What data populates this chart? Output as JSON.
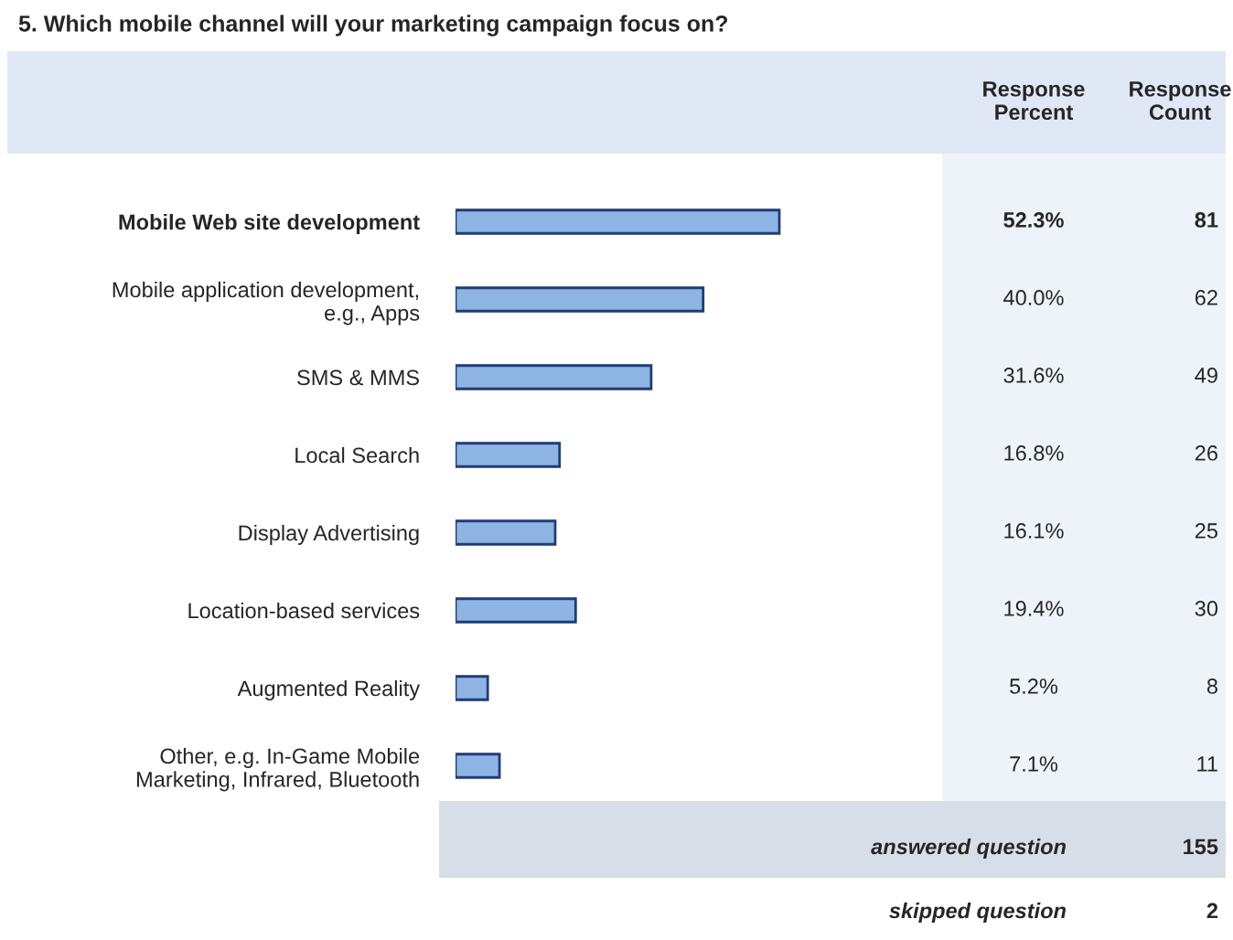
{
  "chart_data": {
    "type": "bar",
    "orientation": "horizontal",
    "title": "5. Which mobile channel will your marketing campaign focus on?",
    "categories": [
      "Mobile Web site development",
      "Mobile application development,\ne.g., Apps",
      "SMS & MMS",
      "Local Search",
      "Display Advertising",
      "Location-based services",
      "Augmented Reality",
      "Other, e.g. In-Game Mobile\nMarketing, Infrared, Bluetooth"
    ],
    "values": [
      52.3,
      40.0,
      31.6,
      16.8,
      16.1,
      19.4,
      5.2,
      7.1
    ],
    "value_labels": [
      "52.3%",
      "40.0%",
      "31.6%",
      "16.8%",
      "16.1%",
      "19.4%",
      "5.2%",
      "7.1%"
    ],
    "color": "#8db4e2",
    "annotations": [
      "81",
      "62",
      "49",
      "26",
      "25",
      "30",
      "8",
      "11",
      "Response\nPercent",
      "Response\nCount",
      "answered question",
      "155",
      "skipped question",
      "2"
    ]
  }
}
